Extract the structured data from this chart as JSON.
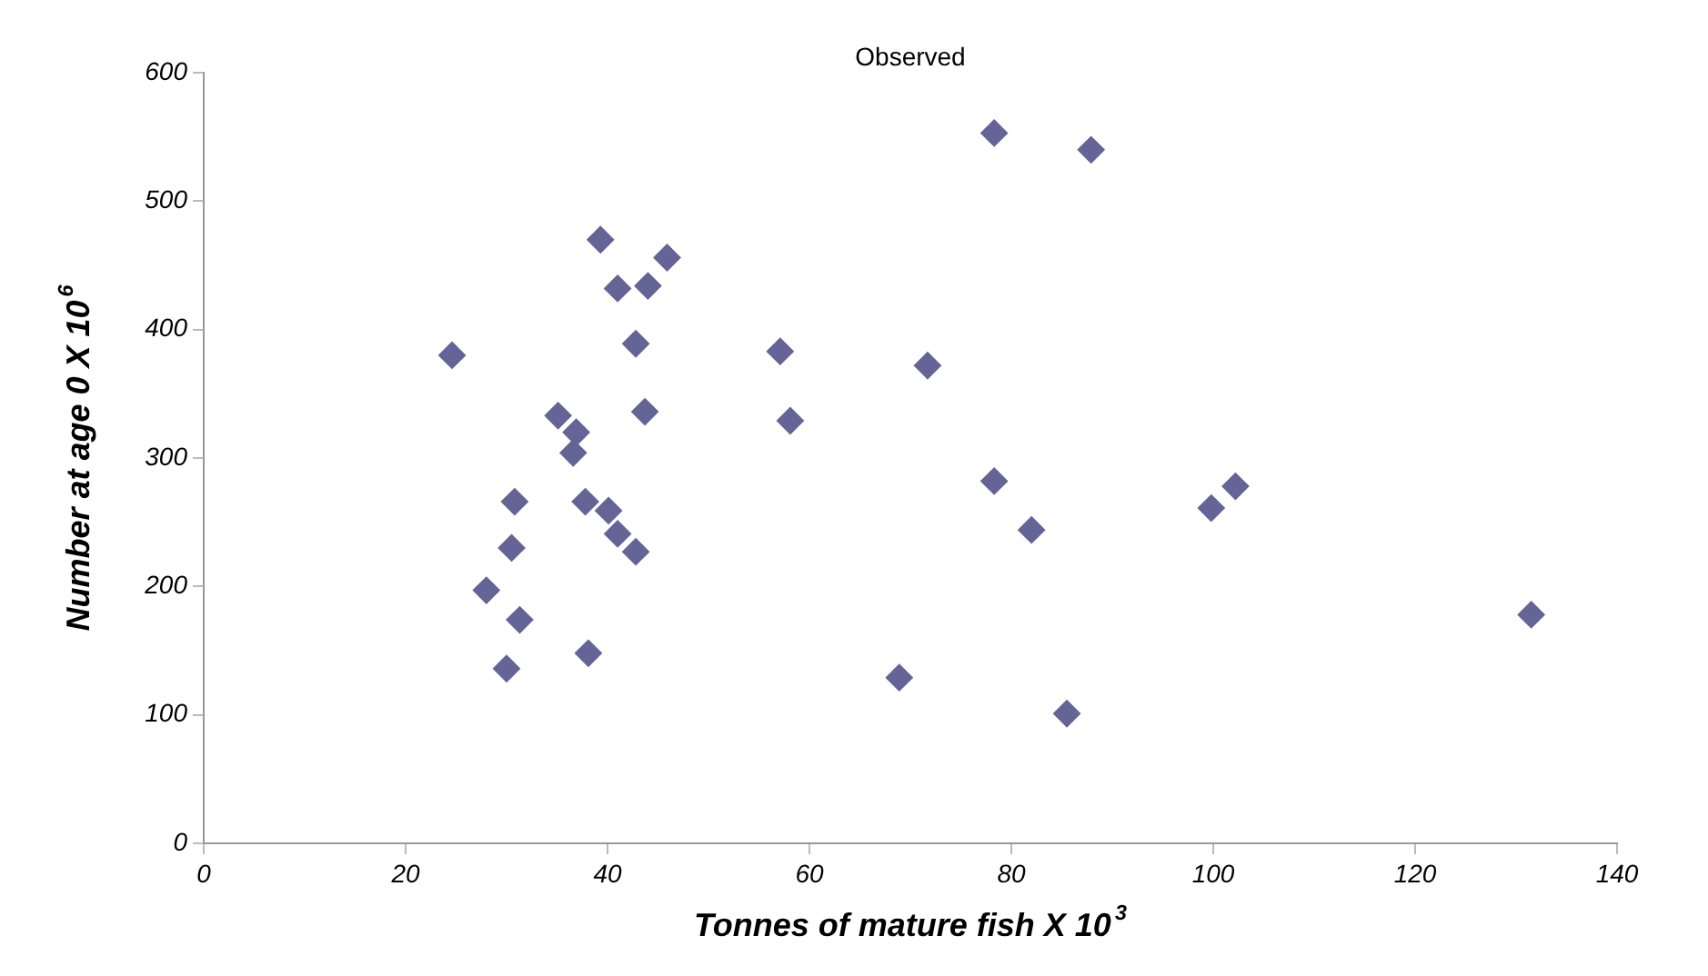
{
  "chart_data": {
    "type": "scatter",
    "title": "Observed",
    "xlabel": "Tonnes of mature fish X 10$^{3}$",
    "ylabel": "Number at age 0 X 10$^{6}$",
    "x": [
      39.3,
      45.9,
      41.0,
      44.0,
      42.8,
      24.6,
      57.1,
      71.7,
      35.1,
      36.9,
      36.6,
      43.7,
      58.1,
      30.8,
      37.8,
      40.1,
      41.0,
      42.8,
      30.5,
      28.0,
      31.3,
      38.1,
      30.0,
      68.9,
      78.3,
      87.9,
      78.3,
      82.0,
      99.8,
      102.2,
      131.5,
      85.5
    ],
    "values": [
      470,
      456,
      432,
      434,
      389,
      380,
      383,
      372,
      333,
      320,
      304,
      336,
      329,
      266,
      266,
      259,
      241,
      227,
      230,
      197,
      174,
      148,
      136,
      129,
      553,
      540,
      282,
      244,
      261,
      278,
      178,
      101
    ],
    "color": "#646496",
    "marker": "diamond",
    "grid": false,
    "xlim": [
      0,
      140
    ],
    "xticks": [
      0,
      20,
      40,
      60,
      80,
      100,
      120,
      140
    ],
    "ylim": [
      0,
      600
    ],
    "yticks": [
      0,
      100,
      200,
      300,
      400,
      500,
      600
    ]
  }
}
